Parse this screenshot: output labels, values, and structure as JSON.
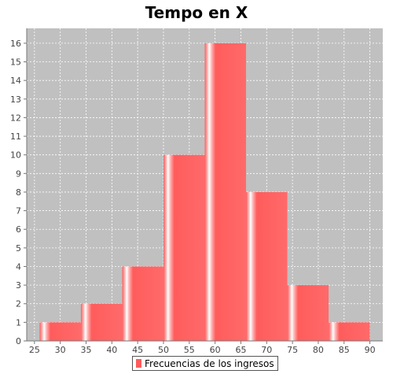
{
  "chart_data": {
    "type": "bar",
    "title": "Tempo en X",
    "xlabel": "",
    "ylabel": "",
    "bins": [
      {
        "start": 26.0,
        "end": 34.0,
        "value": 1
      },
      {
        "start": 34.0,
        "end": 42.0,
        "value": 2
      },
      {
        "start": 42.0,
        "end": 50.0,
        "value": 4
      },
      {
        "start": 50.0,
        "end": 58.0,
        "value": 10
      },
      {
        "start": 58.0,
        "end": 66.0,
        "value": 16
      },
      {
        "start": 66.0,
        "end": 74.0,
        "value": 8
      },
      {
        "start": 74.0,
        "end": 82.0,
        "value": 3
      },
      {
        "start": 82.0,
        "end": 90.0,
        "value": 1
      }
    ],
    "xlim": [
      23.5,
      92.5
    ],
    "ylim": [
      0,
      16.8
    ],
    "x_ticks": [
      25,
      30,
      35,
      40,
      45,
      50,
      55,
      60,
      65,
      70,
      75,
      80,
      85,
      90
    ],
    "y_ticks": [
      0,
      1,
      2,
      3,
      4,
      5,
      6,
      7,
      8,
      9,
      10,
      11,
      12,
      13,
      14,
      15,
      16
    ],
    "grid": true,
    "legend_position": "bottom",
    "series": [
      {
        "name": "Frecuencias de los ingresos"
      }
    ],
    "colors": {
      "bar": "#ff5c5c",
      "bar_highlight": "#ffffff",
      "plot_background": "#c0c0c0",
      "grid": "#ffffff"
    }
  }
}
